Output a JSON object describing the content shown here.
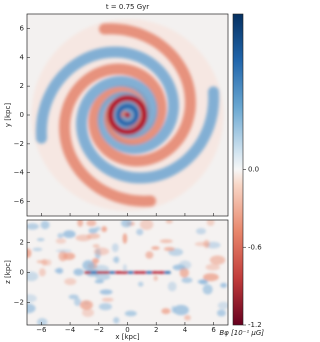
{
  "chart_data": [
    {
      "type": "heatmap",
      "title": "t = 0.75 Gyr",
      "ylabel": "y [kpc]",
      "xlim": [
        -7,
        7
      ],
      "ylim": [
        -7,
        7
      ],
      "yticks": [
        {
          "value": -6,
          "label": "−6"
        },
        {
          "value": -4,
          "label": "−4"
        },
        {
          "value": -2,
          "label": "−2"
        },
        0,
        2,
        4,
        6
      ],
      "colorbar": {
        "label": "Bφ [10⁻¹ μG]",
        "lim": [
          -1.2,
          1.2
        ],
        "ticks": [
          {
            "value": 0,
            "label": "0.0"
          },
          {
            "value": -0.6,
            "label": "-0.6"
          },
          {
            "value": -1.2,
            "label": "-1.2"
          }
        ]
      }
    },
    {
      "type": "heatmap",
      "xlabel": "x [kpc]",
      "ylabel": "z [kpc]",
      "xlim": [
        -7,
        7
      ],
      "ylim": [
        -3.5,
        3.5
      ],
      "xticks": [
        {
          "value": -6,
          "label": "−6"
        },
        {
          "value": -4,
          "label": "−4"
        },
        {
          "value": -2,
          "label": "−2"
        },
        0,
        2,
        4,
        6
      ],
      "yticks": [
        {
          "value": -2,
          "label": "−2"
        },
        0,
        2
      ]
    }
  ]
}
